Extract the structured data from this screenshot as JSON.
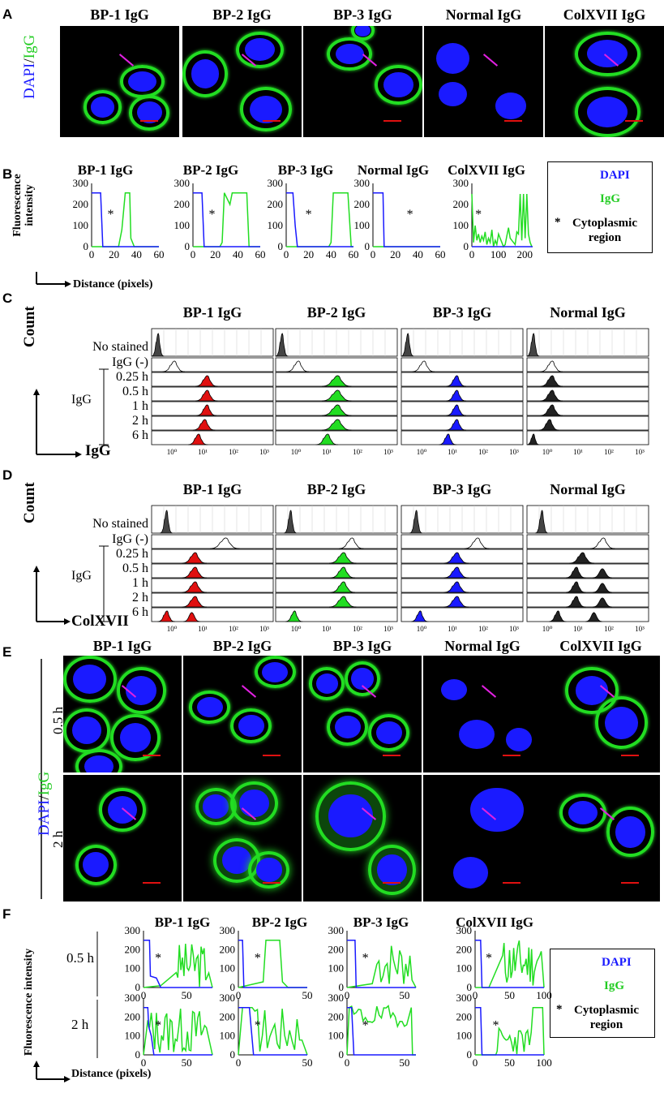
{
  "panels": [
    "A",
    "B",
    "C",
    "D",
    "E",
    "F"
  ],
  "colors": {
    "dapi": "#1a1aff",
    "igg": "#22dd22",
    "red": "#e01010",
    "magenta": "#e020e0",
    "black_fill": "#222222"
  },
  "panelA": {
    "side_label_dapi": "DAPI",
    "side_label_sep": "/",
    "side_label_igg": "IgG",
    "titles": [
      "BP-1 IgG",
      "BP-2 IgG",
      "BP-3 IgG",
      "Normal IgG",
      "ColXVII IgG"
    ]
  },
  "panelB": {
    "ylabel": "Fluorescence intensity",
    "xlabel": "Distance (pixels)",
    "titles": [
      "BP-1 IgG",
      "BP-2 IgG",
      "BP-3 IgG",
      "Normal IgG",
      "ColXVII IgG"
    ],
    "legend": {
      "dapi": "DAPI",
      "igg": "IgG",
      "star": "*",
      "cyto": "Cytoplasmic region"
    },
    "star": "*",
    "yticks": [
      "0",
      "100",
      "200",
      "300"
    ],
    "xticks_60": [
      "0",
      "20",
      "40",
      "60"
    ],
    "xticks_200": [
      "0",
      "100",
      "200"
    ]
  },
  "panelC": {
    "titles": [
      "BP-1 IgG",
      "BP-2 IgG",
      "BP-3 IgG",
      "Normal IgG"
    ],
    "row_labels": [
      "No stained",
      "IgG (-)",
      "0.25 h",
      "0.5 h",
      "1 h",
      "2 h",
      "6 h"
    ],
    "group_label": "IgG",
    "ylabel": "Count",
    "xlabel": "IgG",
    "xticks": [
      "10⁰",
      "10¹",
      "10²",
      "10³"
    ]
  },
  "panelD": {
    "titles": [
      "BP-1 IgG",
      "BP-2 IgG",
      "BP-3 IgG",
      "Normal IgG"
    ],
    "row_labels": [
      "No stained",
      "IgG (-)",
      "0.25 h",
      "0.5 h",
      "1 h",
      "2 h",
      "6 h"
    ],
    "group_label": "IgG",
    "ylabel": "Count",
    "xlabel": "ColXVII",
    "xticks": [
      "10⁰",
      "10¹",
      "10²",
      "10³"
    ]
  },
  "panelE": {
    "titles": [
      "BP-1 IgG",
      "BP-2 IgG",
      "BP-3 IgG",
      "Normal IgG",
      "ColXVII IgG"
    ],
    "row_times": [
      "0.5 h",
      "2 h"
    ],
    "side_label_dapi": "DAPI",
    "side_label_sep": "/",
    "side_label_igg": "IgG"
  },
  "panelF": {
    "titles": [
      "BP-1 IgG",
      "BP-2 IgG",
      "BP-3 IgG",
      "ColXVII IgG"
    ],
    "row_times": [
      "0.5 h",
      "2 h"
    ],
    "ylabel": "Fluorescence intensity",
    "xlabel": "Distance (pixels)",
    "legend": {
      "dapi": "DAPI",
      "igg": "IgG",
      "star": "*",
      "cyto": "Cytoplasmic region"
    },
    "star": "*",
    "yticks": [
      "0",
      "100",
      "200",
      "300"
    ],
    "xticks_50": [
      "0",
      "50"
    ],
    "xticks_100": [
      "0",
      "50",
      "100"
    ]
  }
}
